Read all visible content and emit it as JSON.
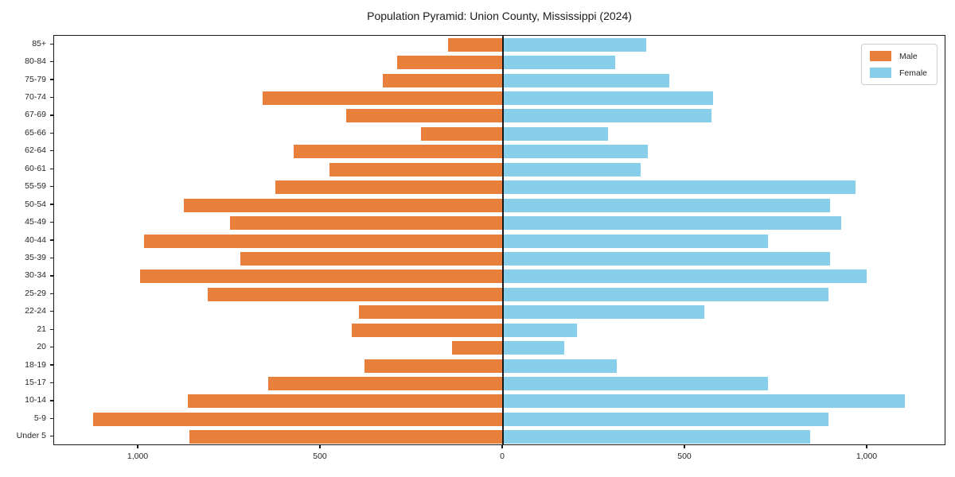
{
  "title": "Population Pyramid: Union County, Mississippi (2024)",
  "legend": {
    "male_label": "Male",
    "female_label": "Female"
  },
  "colors": {
    "male": "#e8803c",
    "female": "#87ceeb",
    "axis": "#1a1a1a"
  },
  "x_axis": {
    "tick_labels": [
      "1,000",
      "500",
      "0",
      "500",
      "1,000"
    ],
    "tick_values": [
      -1000,
      -500,
      0,
      500,
      1000
    ]
  },
  "chart_data": {
    "type": "bar",
    "subtype": "population-pyramid",
    "title": "Population Pyramid: Union County, Mississippi (2024)",
    "categories_top_to_bottom": [
      "85+",
      "80-84",
      "75-79",
      "70-74",
      "67-69",
      "65-66",
      "62-64",
      "60-61",
      "55-59",
      "50-54",
      "45-49",
      "40-44",
      "35-39",
      "30-34",
      "25-29",
      "22-24",
      "21",
      "20",
      "18-19",
      "15-17",
      "10-14",
      "5-9",
      "Under 5"
    ],
    "series": [
      {
        "name": "Male",
        "direction": "left",
        "values": [
          150,
          290,
          330,
          660,
          430,
          225,
          575,
          475,
          625,
          875,
          750,
          985,
          720,
          995,
          810,
          395,
          415,
          140,
          380,
          645,
          865,
          1125,
          860
        ]
      },
      {
        "name": "Female",
        "direction": "right",
        "values": [
          390,
          305,
          455,
          575,
          570,
          285,
          395,
          375,
          965,
          895,
          925,
          725,
          895,
          995,
          890,
          550,
          200,
          165,
          310,
          725,
          1100,
          890,
          840
        ]
      }
    ],
    "xlim": [
      -1231,
      1216
    ],
    "grid": false,
    "legend_position": "upper right"
  }
}
